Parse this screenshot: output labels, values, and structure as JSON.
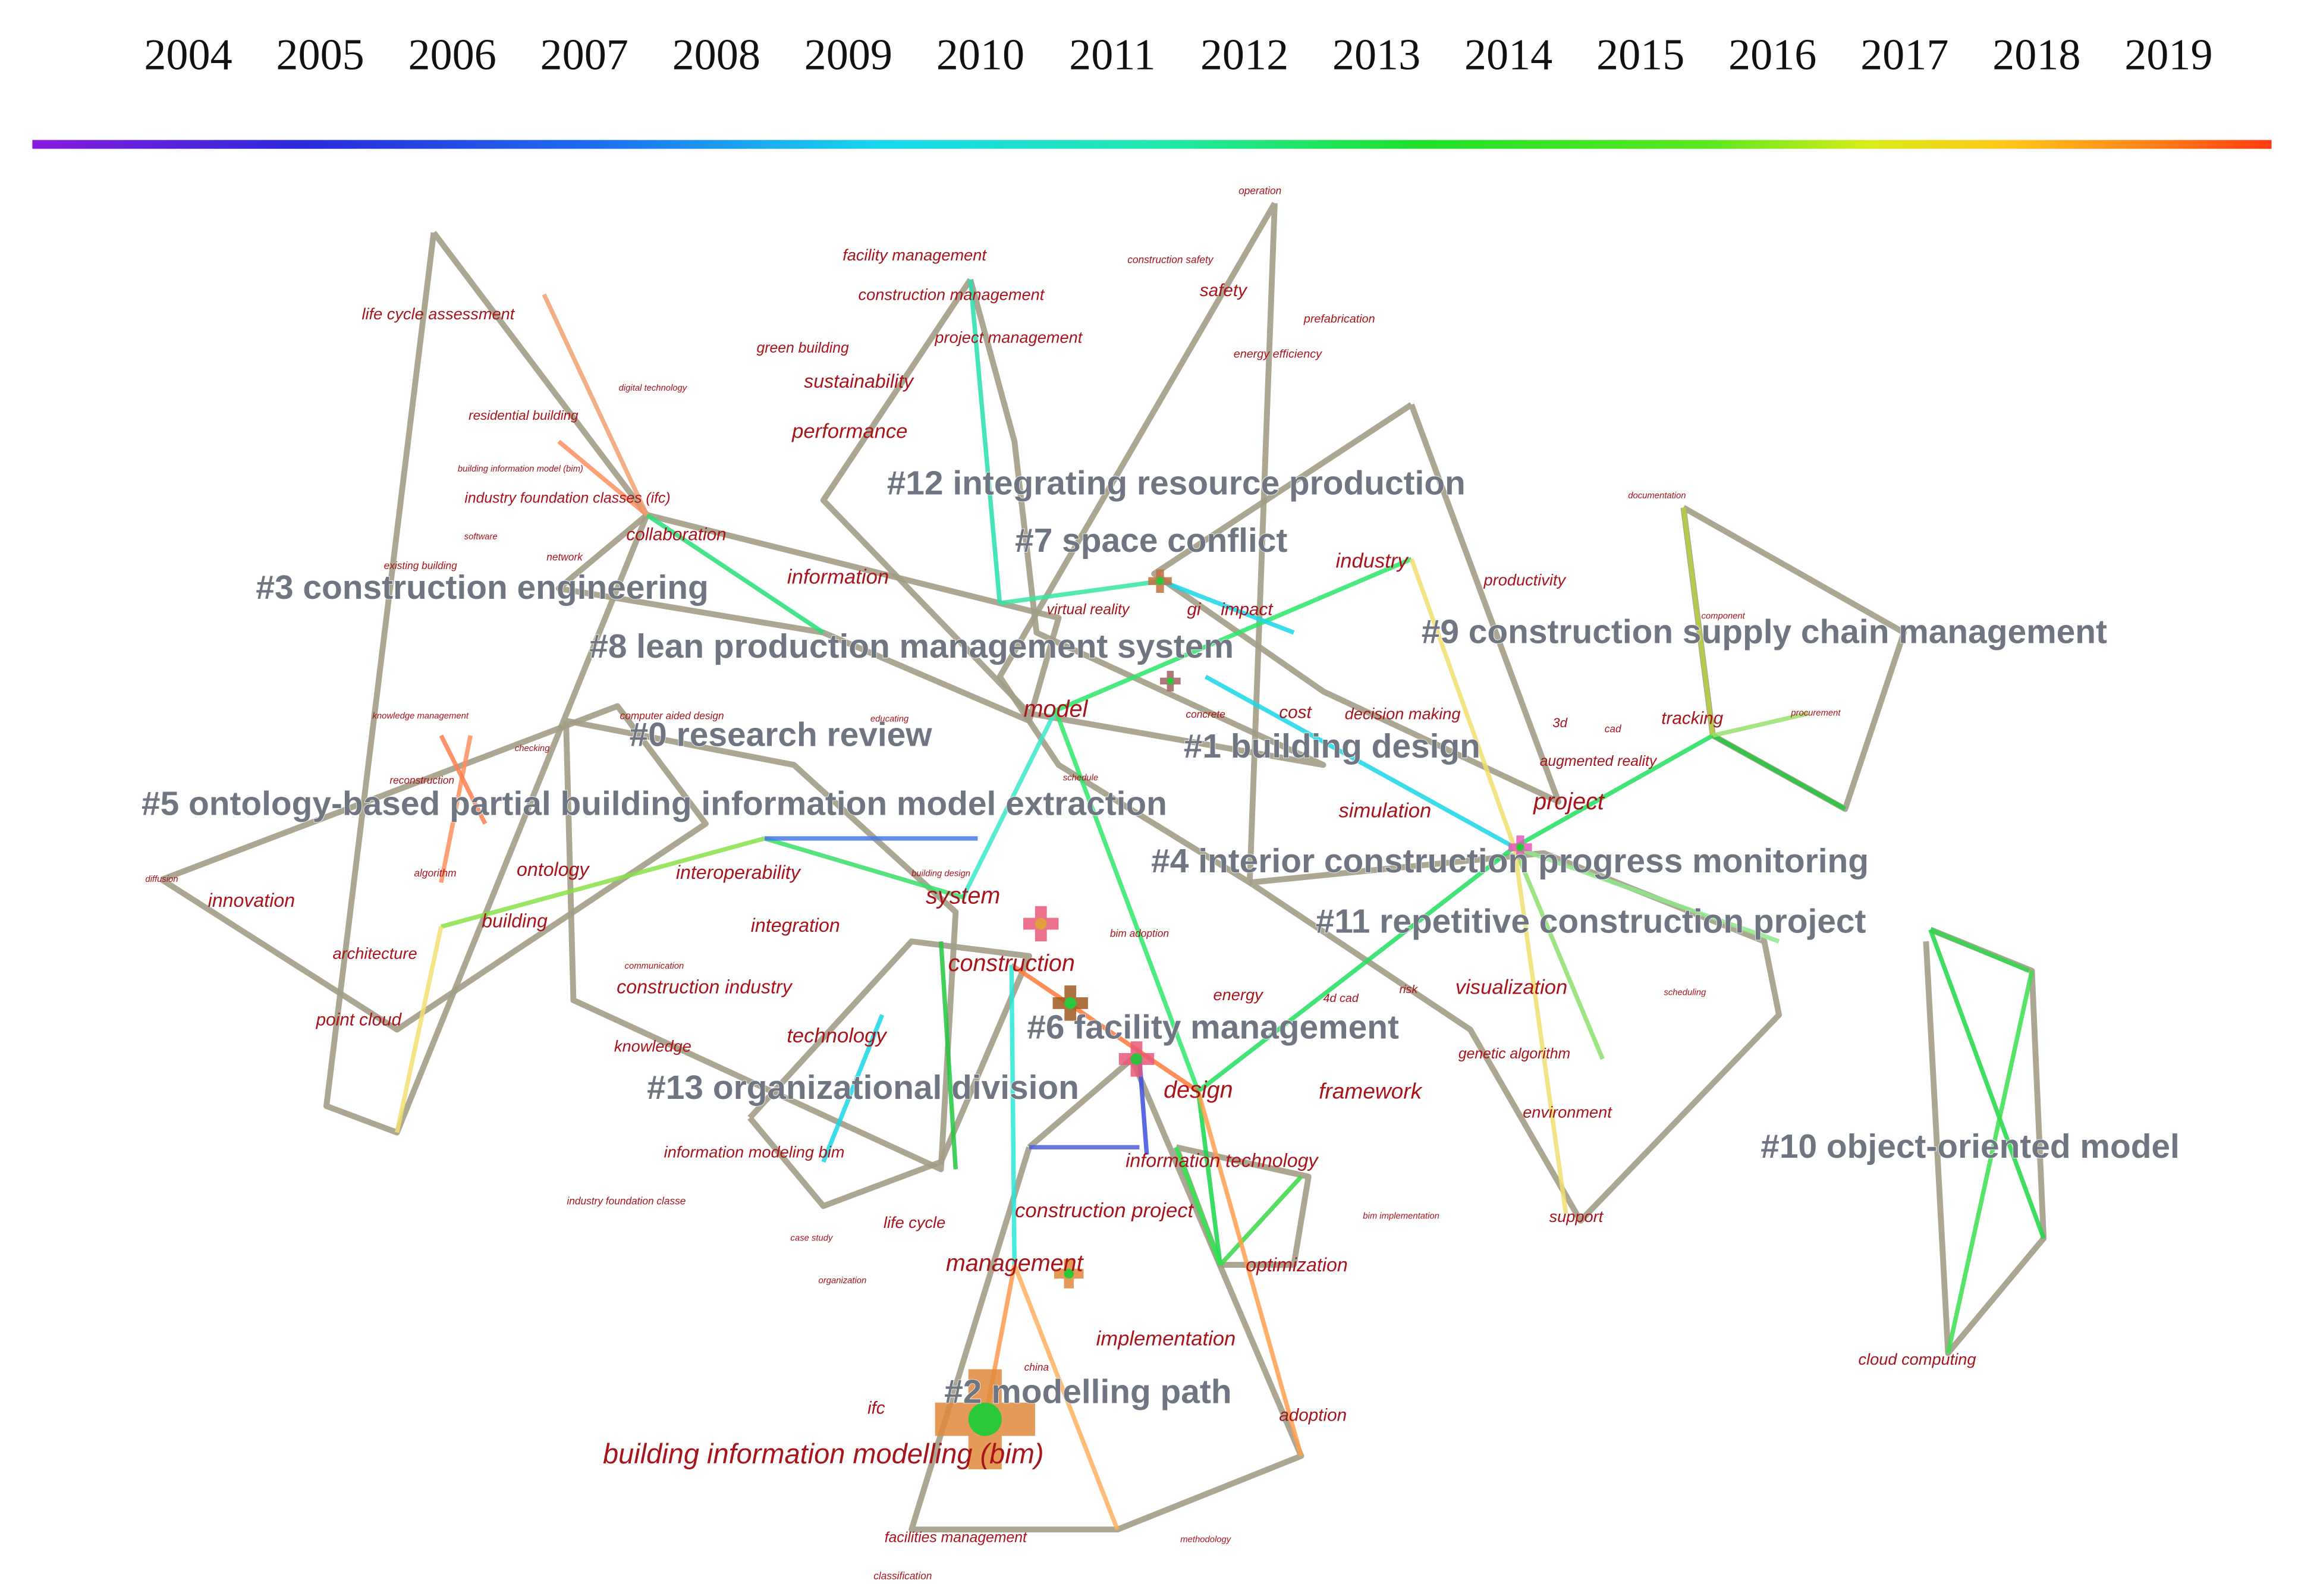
{
  "timeline": {
    "years": [
      2004,
      2005,
      2006,
      2007,
      2008,
      2009,
      2010,
      2011,
      2012,
      2013,
      2014,
      2015,
      2016,
      2017,
      2018,
      2019
    ]
  },
  "clusters": [
    "#12 integrating resource production",
    "#7 space conflict",
    "#3 construction engineering",
    "#8 lean production management system",
    "#9 construction supply chain management",
    "#0 research review",
    "#1 building design",
    "#5 ontology-based partial building information model extraction",
    "#4 interior construction progress monitoring",
    "#11 repetitive construction project",
    "#6 facility management",
    "#13 organizational division",
    "#10 object-oriented model",
    "#2 modelling path"
  ],
  "keywords": [
    "model",
    "system",
    "construction",
    "design",
    "management",
    "building information modelling (bim)",
    "project",
    "visualization",
    "framework",
    "simulation",
    "industry",
    "information",
    "performance",
    "sustainability",
    "interoperability",
    "ontology",
    "building",
    "innovation",
    "integration",
    "construction industry",
    "technology",
    "information technology",
    "construction project",
    "optimization",
    "implementation",
    "adoption",
    "ifc",
    "point cloud",
    "architecture",
    "knowledge",
    "information modeling bim",
    "life cycle",
    "collaboration",
    "safety",
    "impact",
    "gi",
    "cost",
    "energy",
    "tracking",
    "cloud computing",
    "support",
    "environment",
    "genetic algorithm",
    "productivity",
    "augmented reality",
    "decision making",
    "virtual reality",
    "facility management",
    "construction management",
    "project management",
    "green building",
    "life cycle assessment",
    "residential building",
    "industry foundation classes (ifc)",
    "facilities management",
    "operation",
    "construction safety",
    "prefabrication",
    "energy efficiency",
    "digital technology",
    "building information model (bim)",
    "software",
    "network",
    "existing building",
    "knowledge management",
    "checking",
    "computer aided design",
    "educating",
    "concrete",
    "schedule",
    "reconstruction",
    "diffusion",
    "algorithm",
    "communication",
    "building design",
    "bim adoption",
    "4d cad",
    "risk",
    "bim implementation",
    "industry foundation classe",
    "case study",
    "organization",
    "china",
    "methodology",
    "classification",
    "documentation",
    "component",
    "procurement",
    "cad",
    "3d",
    "scheduling"
  ]
}
